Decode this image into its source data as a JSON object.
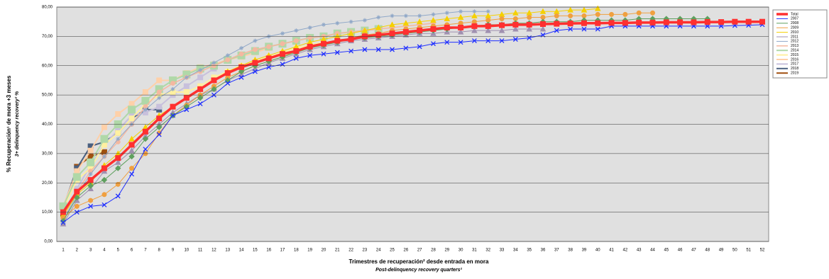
{
  "chart_data": {
    "type": "line",
    "ylabel": "% Recuperación¹ de mora +3 meses",
    "ylabel_sub": "3+ delinquency recovery² %",
    "xlabel": "Trimestres de recuperación² desde entrada en mora",
    "xlabel_sub": "Post-delinquency recovery quarters²",
    "categories": [
      "1",
      "2",
      "3",
      "4",
      "5",
      "6",
      "7",
      "8",
      "9",
      "10",
      "11",
      "12",
      "13",
      "14",
      "15",
      "16",
      "17",
      "18",
      "19",
      "20",
      "21",
      "22",
      "23",
      "24",
      "25",
      "26",
      "27",
      "28",
      "29",
      "30",
      "31",
      "32",
      "33",
      "34",
      "35",
      "36",
      "37",
      "38",
      "39",
      "40",
      "41",
      "42",
      "43",
      "44",
      "45",
      "46",
      "47",
      "48",
      "49",
      "50",
      "51",
      "52"
    ],
    "ylim": [
      0,
      80
    ],
    "yticks": [
      {
        "value": 0,
        "label": "0,00"
      },
      {
        "value": 10,
        "label": "10,00"
      },
      {
        "value": 20,
        "label": "20,00"
      },
      {
        "value": 30,
        "label": "30,00"
      },
      {
        "value": 40,
        "label": "40,00"
      },
      {
        "value": 50,
        "label": "50,00"
      },
      {
        "value": 60,
        "label": "60,00"
      },
      {
        "value": 70,
        "label": "70,00"
      },
      {
        "value": 80,
        "label": "80,00"
      }
    ],
    "grid": true,
    "legend": "right",
    "series": [
      {
        "name": "Total",
        "color": "#ff3030",
        "width": 3.5,
        "marker": "square",
        "values": [
          10,
          17,
          21,
          25,
          28.5,
          33,
          37.5,
          42,
          46,
          49,
          52,
          55,
          57.5,
          59.5,
          61,
          62.5,
          64,
          65,
          66.5,
          67.5,
          68.5,
          69,
          70,
          70.5,
          71,
          71.5,
          72,
          72.5,
          73,
          73,
          73.5,
          73.5,
          73.8,
          74,
          74,
          74.2,
          74.3,
          74.4,
          74.5,
          74.5,
          74.6,
          74.6,
          74.7,
          74.7,
          74.8,
          74.8,
          74.8,
          74.9,
          74.9,
          75,
          75,
          75
        ]
      },
      {
        "name": "2007",
        "color": "#1f2fff",
        "width": 1,
        "marker": "x",
        "values": [
          6.5,
          10,
          12,
          12.5,
          15.5,
          23,
          31.5,
          36.5,
          43,
          45,
          47,
          50,
          54,
          56,
          58,
          59.5,
          60.5,
          62.5,
          63.5,
          64,
          64.5,
          65,
          65.5,
          65.5,
          65.5,
          66,
          66.5,
          67.5,
          68,
          68,
          68.5,
          68.5,
          68.5,
          69,
          69.5,
          70.5,
          72,
          72.5,
          72.5,
          72.5,
          73.5,
          73.5,
          73.5,
          73.5,
          73.5,
          73.5,
          73.5,
          73.5,
          73.5,
          73.7,
          73.8,
          74
        ]
      },
      {
        "name": "2008",
        "color": "#5fa05f",
        "width": 1,
        "marker": "diamond",
        "values": [
          7,
          15,
          19,
          21,
          25,
          29,
          35,
          39,
          43,
          46,
          49,
          52,
          55,
          58,
          60,
          61.5,
          63,
          64.5,
          66,
          67,
          68,
          69,
          69.5,
          70,
          70.5,
          71,
          71.5,
          72,
          72.5,
          73,
          73.5,
          74,
          74,
          74.5,
          74.5,
          75,
          75,
          75,
          75.5,
          75.5,
          75.5,
          75.5,
          76,
          76,
          76,
          76,
          76,
          76,
          null,
          null,
          null,
          null
        ]
      },
      {
        "name": "2009",
        "color": "#f0a040",
        "width": 1,
        "marker": "circle",
        "values": [
          8,
          12,
          14,
          16,
          19.5,
          25,
          30,
          37,
          43,
          46.5,
          50,
          53,
          56,
          58,
          60,
          61.5,
          63,
          65,
          66.5,
          67.5,
          68.5,
          69.5,
          70.5,
          71,
          72,
          72.5,
          73,
          73.5,
          74,
          74.5,
          75,
          75.5,
          76,
          76,
          76.5,
          76.5,
          77,
          77,
          77,
          77.5,
          77.5,
          77.5,
          78,
          78,
          null,
          null,
          null,
          null,
          null,
          null,
          null,
          null
        ]
      },
      {
        "name": "2010",
        "color": "#f5d000",
        "width": 1,
        "marker": "triangle",
        "values": [
          9,
          16,
          20,
          26,
          30,
          35,
          39,
          43,
          46,
          49,
          52,
          55,
          58,
          60,
          62,
          63.5,
          65,
          66.5,
          68,
          69,
          70,
          71,
          72,
          73,
          74,
          74.5,
          75,
          75.5,
          76,
          76.5,
          77,
          77,
          77.5,
          78,
          78,
          78.5,
          78.5,
          79,
          79,
          79.5,
          null,
          null,
          null,
          null,
          null,
          null,
          null,
          null,
          null,
          null,
          null,
          null
        ]
      },
      {
        "name": "2011",
        "color": "#a090b0",
        "width": 1,
        "marker": "triangle",
        "values": [
          6,
          14,
          18,
          24,
          27,
          31,
          36,
          40,
          44,
          47,
          50,
          52,
          55,
          57,
          59,
          61,
          62.5,
          64,
          65.5,
          66.5,
          67.5,
          68.5,
          69,
          69.5,
          70,
          70.5,
          71,
          71,
          71.5,
          71.5,
          72,
          72,
          72,
          72.5,
          72.5,
          72.5,
          null,
          null,
          null,
          null,
          null,
          null,
          null,
          null,
          null,
          null,
          null,
          null,
          null,
          null,
          null,
          null
        ]
      },
      {
        "name": "2012",
        "color": "#90a8c8",
        "width": 1,
        "marker": "star",
        "values": [
          7,
          16,
          23,
          29,
          35,
          40,
          45,
          49,
          52,
          56,
          58.5,
          61,
          63.5,
          66,
          68.5,
          70,
          71,
          72,
          73,
          74,
          74.5,
          75,
          75.5,
          76.5,
          77,
          77,
          77,
          77.5,
          78,
          78.5,
          78.5,
          78.5,
          null,
          null,
          null,
          null,
          null,
          null,
          null,
          null,
          null,
          null,
          null,
          null,
          null,
          null,
          null,
          null,
          null,
          null,
          null,
          null
        ]
      },
      {
        "name": "2013",
        "color": "#f4b8a0",
        "width": 1.5,
        "marker": "circle",
        "values": [
          8,
          17,
          24,
          29,
          34,
          40,
          46,
          51,
          54,
          56,
          58,
          60,
          62,
          64,
          65.5,
          66.5,
          67.5,
          68.5,
          69.5,
          70,
          71,
          71.5,
          72,
          72.5,
          73,
          73.5,
          74,
          74.5,
          null,
          null,
          null,
          null,
          null,
          null,
          null,
          null,
          null,
          null,
          null,
          null,
          null,
          null,
          null,
          null,
          null,
          null,
          null,
          null,
          null,
          null,
          null,
          null
        ]
      },
      {
        "name": "2014",
        "color": "#b0d8a8",
        "width": 2,
        "marker": "bigsquare",
        "values": [
          12,
          22,
          27,
          35,
          40,
          45,
          48,
          52,
          55,
          57,
          59,
          60,
          62,
          63.5,
          65,
          66.5,
          67.5,
          68.5,
          69.5,
          70,
          71,
          71.5,
          72,
          72.5,
          null,
          null,
          null,
          null,
          null,
          null,
          null,
          null,
          null,
          null,
          null,
          null,
          null,
          null,
          null,
          null,
          null,
          null,
          null,
          null,
          null,
          null,
          null,
          null,
          null,
          null,
          null,
          null
        ]
      },
      {
        "name": "2015",
        "color": "#fff0a0",
        "width": 2,
        "marker": "square",
        "values": [
          11,
          21,
          25,
          33,
          37,
          42,
          47,
          50,
          51,
          51,
          53,
          56,
          58,
          60,
          61.5,
          63,
          64.5,
          66,
          67,
          68,
          null,
          null,
          null,
          null,
          null,
          null,
          null,
          null,
          null,
          null,
          null,
          null,
          null,
          null,
          null,
          null,
          null,
          null,
          null,
          null,
          null,
          null,
          null,
          null,
          null,
          null,
          null,
          null,
          null,
          null,
          null,
          null
        ]
      },
      {
        "name": "2016",
        "color": "#ffd0a8",
        "width": 2,
        "marker": "square",
        "values": [
          12,
          24,
          31,
          39,
          43.5,
          47,
          51,
          55,
          55,
          57.5,
          59.5,
          60.5,
          62,
          63,
          64.5,
          66,
          null,
          null,
          null,
          null,
          null,
          null,
          null,
          null,
          null,
          null,
          null,
          null,
          null,
          null,
          null,
          null,
          null,
          null,
          null,
          null,
          null,
          null,
          null,
          null,
          null,
          null,
          null,
          null,
          null,
          null,
          null,
          null,
          null,
          null,
          null,
          null
        ]
      },
      {
        "name": "2017",
        "color": "#c8c0dc",
        "width": 2,
        "marker": "square",
        "values": [
          7,
          18,
          26,
          33,
          38,
          43,
          44,
          46,
          50,
          53,
          56,
          59,
          null,
          null,
          null,
          null,
          null,
          null,
          null,
          null,
          null,
          null,
          null,
          null,
          null,
          null,
          null,
          null,
          null,
          null,
          null,
          null,
          null,
          null,
          null,
          null,
          null,
          null,
          null,
          null,
          null,
          null,
          null,
          null,
          null,
          null,
          null,
          null,
          null,
          null,
          null,
          null
        ]
      },
      {
        "name": "2018",
        "color": "#4a6080",
        "width": 2,
        "marker": "square",
        "values": [
          11.5,
          25,
          32.5,
          34,
          37,
          42,
          45,
          45,
          null,
          null,
          null,
          null,
          null,
          null,
          null,
          null,
          null,
          null,
          null,
          null,
          null,
          null,
          null,
          null,
          null,
          null,
          null,
          null,
          null,
          null,
          null,
          null,
          null,
          null,
          null,
          null,
          null,
          null,
          null,
          null,
          null,
          null,
          null,
          null,
          null,
          null,
          null,
          null,
          null,
          null,
          null,
          null
        ]
      },
      {
        "name": "2019",
        "color": "#a05010",
        "width": 2,
        "marker": "square",
        "values": [
          9.5,
          25.5,
          29,
          30.5,
          null,
          null,
          null,
          null,
          null,
          null,
          null,
          null,
          null,
          null,
          null,
          null,
          null,
          null,
          null,
          null,
          null,
          null,
          null,
          null,
          null,
          null,
          null,
          null,
          null,
          null,
          null,
          null,
          null,
          null,
          null,
          null,
          null,
          null,
          null,
          null,
          null,
          null,
          null,
          null,
          null,
          null,
          null,
          null,
          null,
          null,
          null,
          null
        ]
      }
    ]
  }
}
